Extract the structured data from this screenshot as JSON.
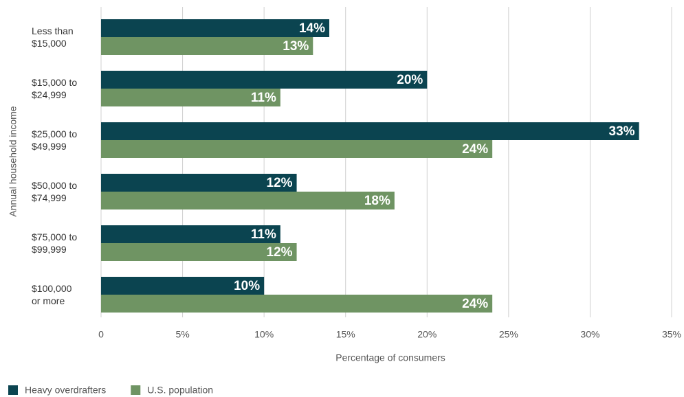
{
  "chart_data": {
    "type": "bar",
    "orientation": "horizontal",
    "categories": [
      "Less than\n$15,000",
      "$15,000 to\n$24,999",
      "$25,000 to\n$49,999",
      "$50,000 to\n$74,999",
      "$75,000 to\n$99,999",
      "$100,000\nor more"
    ],
    "series": [
      {
        "name": "Heavy overdrafters",
        "color": "#0b4450",
        "values": [
          14,
          20,
          33,
          12,
          11,
          10
        ],
        "value_labels": [
          "14%",
          "20%",
          "33%",
          "12%",
          "11%",
          "10%"
        ]
      },
      {
        "name": "U.S. population",
        "color": "#6f9463",
        "values": [
          13,
          11,
          24,
          18,
          12,
          24
        ],
        "value_labels": [
          "13%",
          "11%",
          "24%",
          "18%",
          "12%",
          "24%"
        ]
      }
    ],
    "xlim": [
      0,
      35
    ],
    "xticks": [
      0,
      {
        "value": 5,
        "label": "5%"
      },
      {
        "value": 10,
        "label": "10%"
      },
      {
        "value": 15,
        "label": "15%"
      },
      {
        "value": 20,
        "label": "20%"
      },
      {
        "value": 25,
        "label": "25%"
      },
      {
        "value": 30,
        "label": "30%"
      },
      {
        "value": 35,
        "label": "35%"
      }
    ],
    "x_label": "Percentage of consumers",
    "y_label": "Annual household income",
    "grid": true,
    "legend": "bottom-left"
  }
}
